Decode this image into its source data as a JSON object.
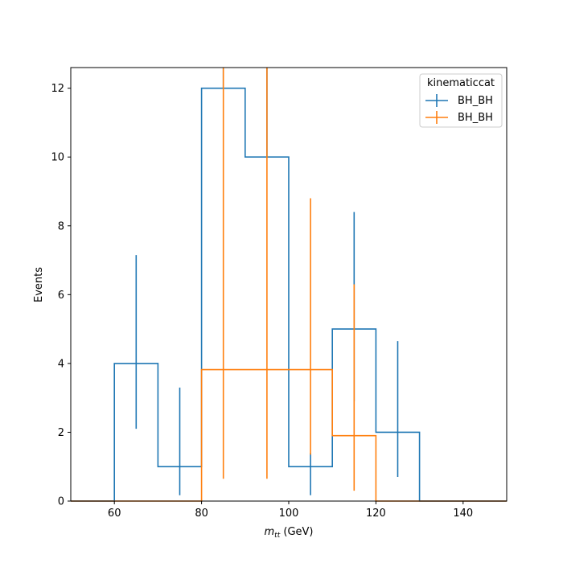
{
  "chart_data": {
    "type": "histogram",
    "xlabel": "m_tt (GeV)",
    "xlabel_main": "m",
    "xlabel_sub": "tt",
    "xlabel_unit": " (GeV)",
    "ylabel": "Events",
    "xlim": [
      50,
      150
    ],
    "ylim": [
      0,
      12.6
    ],
    "x_ticks": [
      60,
      80,
      100,
      120,
      140
    ],
    "y_ticks": [
      0,
      2,
      4,
      6,
      8,
      10,
      12
    ],
    "grid": false,
    "legend": {
      "title": "kinematiccat",
      "placement": "top-right"
    },
    "series": [
      {
        "name": "BH_BH",
        "color": "#1f77b4",
        "bins": [
          50,
          60,
          70,
          80,
          90,
          100,
          110,
          120,
          130,
          140,
          150
        ],
        "values": [
          0,
          4,
          1,
          12,
          10,
          1,
          5,
          2,
          0,
          0
        ],
        "error_low": [
          0,
          2.1,
          0.17,
          12,
          10,
          0.17,
          2.9,
          0.7,
          0,
          0
        ],
        "error_high": [
          0,
          7.15,
          3.3,
          12.6,
          12.6,
          1.4,
          8.4,
          4.65,
          0,
          0
        ]
      },
      {
        "name": "BH_BH",
        "color": "#ff7f0e",
        "bins": [
          50,
          60,
          70,
          80,
          90,
          100,
          110,
          120,
          130,
          140,
          150
        ],
        "values": [
          0,
          0,
          0,
          3.82,
          3.82,
          3.82,
          1.9,
          0,
          0,
          0
        ],
        "error_low": [
          0,
          0,
          0,
          0.65,
          0.65,
          1.35,
          0.3,
          0,
          0,
          0
        ],
        "error_high": [
          0,
          0,
          0,
          12.6,
          12.6,
          8.8,
          6.3,
          0,
          0,
          0
        ]
      }
    ]
  }
}
